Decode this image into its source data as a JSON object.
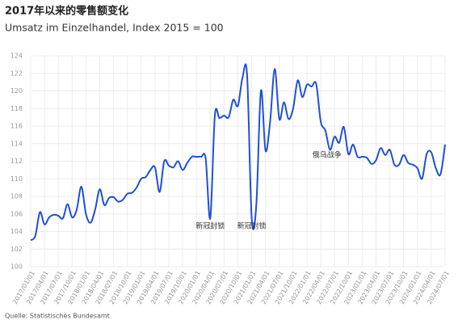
{
  "chart_data": {
    "type": "line",
    "title": "2017年以来的零售额变化",
    "subtitle": "Umsatz im Einzelhandel, Index 2015 = 100",
    "source": "Quelle: Statistisches Bundesamt",
    "categories": [
      "2017/01/01",
      null,
      null,
      "2017/04/01",
      null,
      null,
      "2017/07/01",
      null,
      null,
      "2017/10/01",
      null,
      null,
      "2018/01/01",
      null,
      null,
      "2018/04/01",
      null,
      null,
      "2018/07/01",
      null,
      null,
      "2018/10/01",
      null,
      null,
      "2019/01/01",
      null,
      null,
      "2019/04/01",
      null,
      null,
      "2019/07/01",
      null,
      null,
      "2019/10/01",
      null,
      null,
      "2020/01/01",
      null,
      null,
      "2020/04/01",
      null,
      null,
      "2020/07/01",
      null,
      null,
      "2020/10/01",
      null,
      null,
      "2021/01/01",
      null,
      null,
      "2021/04/01",
      null,
      null,
      "2021/07/01",
      null,
      null,
      "2021/10/01",
      null,
      null,
      "2022/01/01",
      null,
      null,
      "2022/04/01",
      null,
      null,
      "2022/07/01",
      null,
      null,
      "2022/10/01",
      null,
      null,
      "2023/01/01",
      null,
      null,
      "2023/04/01",
      null,
      null,
      "2023/07/01",
      null,
      null,
      "2023/10/01",
      null,
      null,
      "2024/01/01",
      null,
      null,
      "2024/04/01",
      null,
      null,
      "2024/07/01"
    ],
    "values": [
      103.0,
      103.5,
      106.2,
      104.8,
      105.6,
      105.9,
      105.8,
      105.5,
      107.1,
      105.6,
      106.5,
      109.1,
      106.0,
      105.0,
      106.5,
      108.8,
      107.0,
      107.8,
      107.9,
      107.4,
      107.6,
      108.3,
      108.4,
      109.0,
      110.0,
      110.2,
      111.0,
      111.3,
      108.5,
      112.0,
      111.5,
      111.3,
      112.0,
      111.0,
      111.8,
      112.5,
      112.5,
      112.5,
      112.3,
      105.5,
      117.2,
      116.9,
      117.2,
      117.0,
      119.0,
      118.3,
      121.5,
      121.8,
      105.5,
      107.0,
      120.0,
      113.2,
      116.5,
      122.5,
      116.8,
      118.7,
      116.8,
      118.0,
      121.2,
      119.3,
      120.7,
      120.5,
      120.8,
      116.5,
      115.5,
      113.3,
      114.8,
      114.1,
      115.9,
      112.8,
      113.9,
      112.5,
      112.5,
      112.4,
      111.7,
      112.1,
      113.5,
      112.7,
      113.3,
      111.6,
      111.6,
      112.7,
      111.8,
      111.6,
      111.2,
      110.0,
      112.8,
      113.0,
      111.2,
      110.5,
      113.9
    ],
    "color": "#1f4fd8",
    "ylim": [
      100,
      124
    ],
    "yticks": [
      100,
      102,
      104,
      106,
      108,
      110,
      112,
      114,
      116,
      118,
      120,
      122,
      124
    ],
    "grid": true,
    "annotations": [
      "新冠封锁",
      "新冠封锁",
      "俄乌战争"
    ]
  }
}
